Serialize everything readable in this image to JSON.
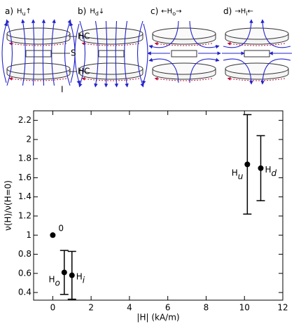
{
  "diagram": {
    "panels": [
      {
        "letter": "a)",
        "field": "H",
        "sub": "u",
        "post": "↑"
      },
      {
        "letter": "b)",
        "field": "H",
        "sub": "d",
        "post": "↓"
      },
      {
        "letter": "c)",
        "pre": "←",
        "field": "H",
        "sub": "o",
        "post": "→"
      },
      {
        "letter": "d)",
        "pre": "→",
        "field": "H",
        "sub": "i",
        "post": "←"
      }
    ],
    "labels": {
      "coil_top": "HC",
      "sample": "S",
      "coil_bottom": "HC",
      "current": "I"
    }
  },
  "chart_data": {
    "type": "scatter",
    "xlabel": "|H| (kA/m)",
    "ylabel": "ν(H)/ν(H=0)",
    "x": [
      0,
      0.6,
      1.0,
      10.15,
      10.85
    ],
    "values": [
      1.0,
      0.61,
      0.58,
      1.74,
      1.7
    ],
    "errors": [
      null,
      0.23,
      0.25,
      0.52,
      0.34
    ],
    "point_labels": [
      "0",
      "H",
      "H",
      "H",
      "H"
    ],
    "point_label_subs": [
      null,
      "o",
      "i",
      "u",
      "d"
    ],
    "color": "#000000",
    "xlim": [
      -1,
      12
    ],
    "ylim": [
      0.32,
      2.3
    ],
    "xticks": [
      0,
      2,
      4,
      6,
      8,
      10,
      12
    ],
    "yticks": [
      0.4,
      0.6,
      0.8,
      1,
      1.2,
      1.4,
      1.6,
      1.8,
      2,
      2.2
    ]
  }
}
